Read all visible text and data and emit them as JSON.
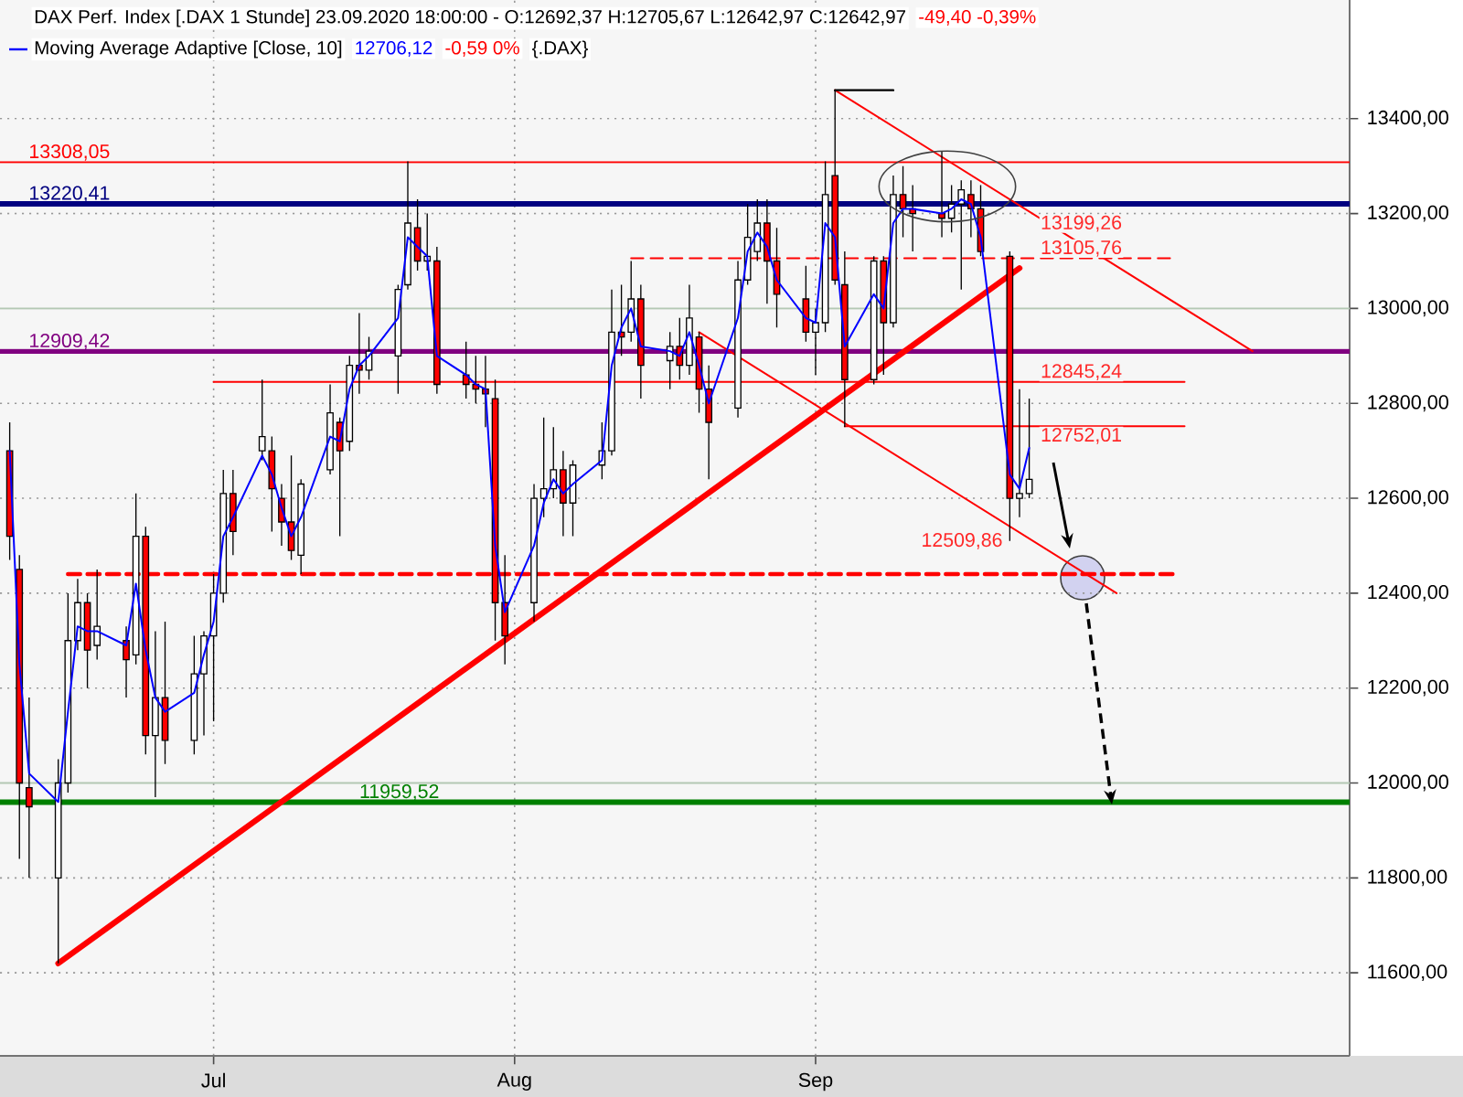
{
  "chart_data": {
    "type": "candlestick",
    "title": "DAX Perf. Index [.DAX 1 Stunde] 23.09.2020 18:00:00 - O:12692,37 H:12705,67 L:12642,97 C:12642,97",
    "annotations": [
      "-49,40 -0,39%",
      "12706,12",
      "-0,59 0%",
      "{.DAX}",
      {
        "text": "13199,26",
        "x": "2020-09-24",
        "y": 13199.26
      },
      {
        "text": "13105,76",
        "x": "2020-09-24",
        "y": 13105.76
      },
      {
        "text": "12845,24",
        "x": "2020-09-24",
        "y": 12845.24
      },
      {
        "text": "12752,01",
        "x": "2020-09-24",
        "y": 12752.01
      },
      {
        "text": "12509,86",
        "x": "2020-09-21",
        "y": 12509.86
      }
    ],
    "x": [
      "2020-06-10",
      "2020-06-11",
      "2020-06-12",
      "2020-06-15",
      "2020-06-16",
      "2020-06-17",
      "2020-06-18",
      "2020-06-19",
      "2020-06-22",
      "2020-06-23",
      "2020-06-24",
      "2020-06-25",
      "2020-06-26",
      "2020-06-29",
      "2020-06-30",
      "2020-07-01",
      "2020-07-02",
      "2020-07-03",
      "2020-07-06",
      "2020-07-07",
      "2020-07-08",
      "2020-07-09",
      "2020-07-10",
      "2020-07-13",
      "2020-07-14",
      "2020-07-15",
      "2020-07-16",
      "2020-07-17",
      "2020-07-20",
      "2020-07-21",
      "2020-07-22",
      "2020-07-23",
      "2020-07-24",
      "2020-07-27",
      "2020-07-28",
      "2020-07-29",
      "2020-07-30",
      "2020-07-31",
      "2020-08-03",
      "2020-08-04",
      "2020-08-05",
      "2020-08-06",
      "2020-08-07",
      "2020-08-10",
      "2020-08-11",
      "2020-08-12",
      "2020-08-13",
      "2020-08-14",
      "2020-08-17",
      "2020-08-18",
      "2020-08-19",
      "2020-08-20",
      "2020-08-21",
      "2020-08-24",
      "2020-08-25",
      "2020-08-26",
      "2020-08-27",
      "2020-08-28",
      "2020-08-31",
      "2020-09-01",
      "2020-09-02",
      "2020-09-03",
      "2020-09-04",
      "2020-09-07",
      "2020-09-08",
      "2020-09-09",
      "2020-09-10",
      "2020-09-11",
      "2020-09-14",
      "2020-09-15",
      "2020-09-16",
      "2020-09-17",
      "2020-09-18",
      "2020-09-21",
      "2020-09-22",
      "2020-09-23"
    ],
    "ohlc": [
      [
        12700,
        12760,
        12470,
        12520
      ],
      [
        12450,
        12480,
        11840,
        12000
      ],
      [
        11990,
        12180,
        11800,
        11950
      ],
      [
        11800,
        12050,
        11620,
        12000
      ],
      [
        12000,
        12400,
        11980,
        12300
      ],
      [
        12300,
        12430,
        12280,
        12380
      ],
      [
        12380,
        12400,
        12200,
        12280
      ],
      [
        12290,
        12450,
        12260,
        12330
      ],
      [
        12300,
        12330,
        12180,
        12260
      ],
      [
        12270,
        12610,
        12250,
        12520
      ],
      [
        12520,
        12540,
        12060,
        12100
      ],
      [
        12100,
        12320,
        11970,
        12180
      ],
      [
        12180,
        12340,
        12040,
        12090
      ],
      [
        12090,
        12310,
        12060,
        12230
      ],
      [
        12230,
        12320,
        12100,
        12310
      ],
      [
        12310,
        12440,
        12130,
        12400
      ],
      [
        12400,
        12660,
        12380,
        12610
      ],
      [
        12610,
        12660,
        12480,
        12530
      ],
      [
        12700,
        12850,
        12680,
        12730
      ],
      [
        12700,
        12730,
        12530,
        12620
      ],
      [
        12600,
        12630,
        12500,
        12550
      ],
      [
        12550,
        12690,
        12470,
        12490
      ],
      [
        12480,
        12640,
        12440,
        12630
      ],
      [
        12660,
        12840,
        12650,
        12780
      ],
      [
        12760,
        12770,
        12520,
        12700
      ],
      [
        12720,
        12900,
        12700,
        12880
      ],
      [
        12880,
        12990,
        12820,
        12870
      ],
      [
        12870,
        12940,
        12850,
        12910
      ],
      [
        12900,
        13050,
        12820,
        13040
      ],
      [
        13050,
        13310,
        13040,
        13180
      ],
      [
        13170,
        13230,
        13080,
        13100
      ],
      [
        13100,
        13200,
        13080,
        13110
      ],
      [
        13100,
        13130,
        12820,
        12840
      ],
      [
        12860,
        12930,
        12810,
        12840
      ],
      [
        12840,
        12900,
        12800,
        12830
      ],
      [
        12830,
        12900,
        12750,
        12820
      ],
      [
        12810,
        12850,
        12300,
        12380
      ],
      [
        12380,
        12480,
        12250,
        12310
      ],
      [
        12380,
        12630,
        12340,
        12600
      ],
      [
        12600,
        12770,
        12560,
        12620
      ],
      [
        12620,
        12750,
        12600,
        12660
      ],
      [
        12660,
        12700,
        12520,
        12590
      ],
      [
        12590,
        12680,
        12520,
        12670
      ],
      [
        12670,
        12760,
        12640,
        12700
      ],
      [
        12700,
        13040,
        12690,
        12950
      ],
      [
        12950,
        13050,
        12900,
        12940
      ],
      [
        12950,
        13100,
        12930,
        13020
      ],
      [
        13020,
        13050,
        12810,
        12880
      ],
      [
        12890,
        12950,
        12830,
        12920
      ],
      [
        12920,
        12980,
        12850,
        12880
      ],
      [
        12880,
        13050,
        12860,
        12980
      ],
      [
        12940,
        12950,
        12780,
        12830
      ],
      [
        12830,
        12880,
        12640,
        12760
      ],
      [
        12790,
        13100,
        12770,
        13060
      ],
      [
        13060,
        13220,
        13050,
        13150
      ],
      [
        13120,
        13230,
        13100,
        13180
      ],
      [
        13180,
        13230,
        13010,
        13100
      ],
      [
        13100,
        13170,
        12960,
        13030
      ],
      [
        13020,
        13090,
        12930,
        12950
      ],
      [
        12950,
        13000,
        12860,
        12970
      ],
      [
        12970,
        13310,
        12950,
        13240
      ],
      [
        13280,
        13460,
        13050,
        13060
      ],
      [
        13050,
        13120,
        12750,
        12850
      ],
      [
        12850,
        13110,
        12840,
        13100
      ],
      [
        13100,
        13110,
        12860,
        12970
      ],
      [
        12970,
        13280,
        12960,
        13240
      ],
      [
        13240,
        13300,
        13150,
        13210
      ],
      [
        13210,
        13260,
        13120,
        13200
      ],
      [
        13200,
        13330,
        13150,
        13190
      ],
      [
        13190,
        13260,
        13160,
        13220
      ],
      [
        13220,
        13270,
        13040,
        13250
      ],
      [
        13240,
        13270,
        13150,
        13210
      ],
      [
        13210,
        13260,
        13110,
        13120
      ],
      [
        13110,
        13120,
        12510,
        12600
      ],
      [
        12600,
        12830,
        12560,
        12610
      ],
      [
        12610,
        12810,
        12600,
        12640
      ]
    ],
    "colors": [
      "#ff0000",
      "#ff0000",
      "#ff0000",
      "#ffffff",
      "#ffffff",
      "#ffffff",
      "#ff0000",
      "#ffffff",
      "#ff0000",
      "#ffffff",
      "#ff0000",
      "#ffffff",
      "#ff0000",
      "#ffffff",
      "#ffffff",
      "#ffffff",
      "#ffffff",
      "#ff0000",
      "#ffffff",
      "#ff0000",
      "#ff0000",
      "#ff0000",
      "#ffffff",
      "#ffffff",
      "#ff0000",
      "#ffffff",
      "#ff0000",
      "#ffffff",
      "#ffffff",
      "#ffffff",
      "#ff0000",
      "#ffffff",
      "#ff0000",
      "#ff0000",
      "#ff0000",
      "#ff0000",
      "#ff0000",
      "#ff0000",
      "#ffffff",
      "#ffffff",
      "#ffffff",
      "#ff0000",
      "#ffffff",
      "#ffffff",
      "#ffffff",
      "#ff0000",
      "#ffffff",
      "#ff0000",
      "#ffffff",
      "#ff0000",
      "#ffffff",
      "#ff0000",
      "#ff0000",
      "#ffffff",
      "#ffffff",
      "#ffffff",
      "#ff0000",
      "#ff0000",
      "#ff0000",
      "#ffffff",
      "#ffffff",
      "#ff0000",
      "#ff0000",
      "#ffffff",
      "#ff0000",
      "#ffffff",
      "#ff0000",
      "#ff0000",
      "#ff0000",
      "#ffffff",
      "#ffffff",
      "#ff0000",
      "#ff0000",
      "#ff0000",
      "#ffffff",
      "#ffffff"
    ],
    "series": [
      {
        "type": "line",
        "name": "Moving Average Adaptive [Close, 10]",
        "color": "#0000ff",
        "values": [
          12700,
          12250,
          12020,
          11960,
          12150,
          12330,
          12320,
          12320,
          12290,
          12420,
          12280,
          12180,
          12150,
          12190,
          12270,
          12340,
          12520,
          12560,
          12690,
          12650,
          12580,
          12520,
          12560,
          12730,
          12720,
          12830,
          12880,
          12900,
          12980,
          13150,
          13130,
          13110,
          12900,
          12860,
          12840,
          12830,
          12500,
          12360,
          12500,
          12590,
          12640,
          12610,
          12630,
          12680,
          12880,
          12960,
          13000,
          12920,
          12910,
          12900,
          12950,
          12880,
          12800,
          12980,
          13120,
          13160,
          13130,
          13060,
          12980,
          12970,
          13180,
          13150,
          12920,
          13030,
          13000,
          13180,
          13210,
          13210,
          13200,
          13210,
          13230,
          13220,
          13150,
          12650,
          12620,
          12706.12
        ]
      },
      {
        "type": "line",
        "color": "#ff0000",
        "x": [
          "2020-06-15",
          "2020-09-22"
        ],
        "values": [
          11620,
          13085
        ]
      },
      {
        "type": "line",
        "color": "#ff0000",
        "x": [
          "2020-09-03",
          "2020-10-16"
        ],
        "values": [
          13460,
          12910
        ]
      },
      {
        "type": "line",
        "color": "#ff0000",
        "x": [
          "2020-08-20",
          "2020-10-02"
        ],
        "values": [
          12950,
          12400
        ]
      },
      {
        "type": "line",
        "color": "#ff0000",
        "line_style": "dashed",
        "x": [
          "2020-08-13",
          "2020-10-08"
        ],
        "values": [
          13105.76,
          13105.76
        ]
      },
      {
        "type": "line",
        "color": "#ff0000",
        "x": [
          "2020-07-01",
          "2020-10-09"
        ],
        "values": [
          12845.24,
          12845.24
        ]
      },
      {
        "type": "line",
        "color": "#ff0000",
        "x": [
          "2020-09-04",
          "2020-10-09"
        ],
        "values": [
          12752.01,
          12752.01
        ]
      },
      {
        "type": "line",
        "color": "#ff0000",
        "line_style": "dashed",
        "x": [
          "2020-06-16",
          "2020-10-08"
        ],
        "values": [
          12440,
          12440
        ]
      },
      {
        "type": "line",
        "color": "#000000",
        "x": [
          "2020-09-03",
          "2020-09-09"
        ],
        "values": [
          13460,
          13460
        ]
      }
    ],
    "ref_lines": [
      {
        "axis": "y",
        "value": 13308.05,
        "label": "13308,05",
        "color": "#ff0000"
      },
      {
        "axis": "y",
        "value": 13220.41,
        "label": "13220,41",
        "color": "#000080"
      },
      {
        "axis": "y",
        "value": 12909.42,
        "label": "12909,42",
        "color": "#800080"
      },
      {
        "axis": "y",
        "value": 11959.52,
        "label": "11959,52",
        "color": "#008000"
      }
    ],
    "xlim": [
      "2020-06-09",
      "2020-10-26"
    ],
    "ylim": [
      11425,
      13650
    ],
    "xticks": [
      {
        "value": "2020-07-01",
        "label": "Jul"
      },
      {
        "value": "2020-08-01",
        "label": "Aug"
      },
      {
        "value": "2020-09-01",
        "label": "Sep"
      }
    ],
    "yticks": [
      {
        "value": 11600,
        "label": "11600,00"
      },
      {
        "value": 11800,
        "label": "11800,00"
      },
      {
        "value": 12000,
        "label": "12000,00"
      },
      {
        "value": 12200,
        "label": "12200,00"
      },
      {
        "value": 12400,
        "label": "12400,00"
      },
      {
        "value": 12600,
        "label": "12600,00"
      },
      {
        "value": 12800,
        "label": "12800,00"
      },
      {
        "value": 13000,
        "label": "13000,00"
      },
      {
        "value": 13200,
        "label": "13200,00"
      },
      {
        "value": 13400,
        "label": "13400,00"
      }
    ],
    "grid": true,
    "legend": "top left"
  }
}
